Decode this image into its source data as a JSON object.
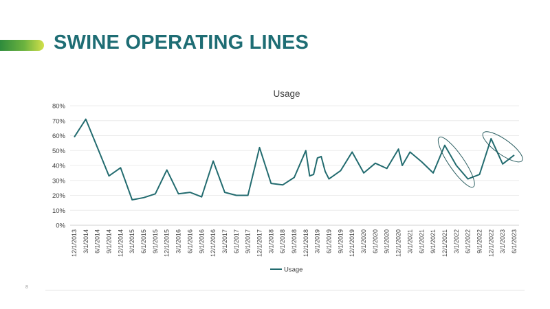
{
  "slide": {
    "title": "SWINE OPERATING LINES",
    "page_number": "8",
    "colors": {
      "title": "#1e6d74",
      "accent_start": "#2e8b3c",
      "accent_end": "#d2e04a"
    }
  },
  "chart_data": {
    "type": "line",
    "title": "Usage",
    "xlabel": "",
    "ylabel": "",
    "ylim": [
      0,
      0.8
    ],
    "yticks": [
      "0%",
      "10%",
      "20%",
      "30%",
      "40%",
      "50%",
      "60%",
      "70%",
      "80%"
    ],
    "grid": true,
    "legend_position": "bottom",
    "line_color": "#226b6f",
    "categories": [
      "12/1/2013",
      "3/1/2014",
      "6/1/2014",
      "9/1/2014",
      "12/1/2014",
      "3/1/2015",
      "6/1/2015",
      "9/1/2015",
      "12/1/2015",
      "3/1/2016",
      "6/1/2016",
      "9/1/2016",
      "12/1/2016",
      "3/1/2017",
      "6/1/2017",
      "9/1/2017",
      "12/1/2017",
      "3/1/2018",
      "6/1/2018",
      "9/1/2018",
      "12/1/2018",
      "3/1/2019",
      "6/1/2019",
      "9/1/2019",
      "12/1/2019",
      "3/1/2020",
      "6/1/2020",
      "9/1/2020",
      "12/1/2020",
      "3/1/2021",
      "6/1/2021",
      "9/1/2021",
      "12/1/2021",
      "3/1/2022",
      "6/1/2022",
      "9/1/2022",
      "12/1/2022",
      "3/1/2023",
      "6/1/2023"
    ],
    "series": [
      {
        "name": "Usage",
        "points": [
          {
            "x": 0,
            "y": 0.59
          },
          {
            "x": 1,
            "y": 0.71
          },
          {
            "x": 2,
            "y": 0.52
          },
          {
            "x": 3,
            "y": 0.33
          },
          {
            "x": 4,
            "y": 0.385
          },
          {
            "x": 5,
            "y": 0.17
          },
          {
            "x": 6,
            "y": 0.185
          },
          {
            "x": 7,
            "y": 0.21
          },
          {
            "x": 8,
            "y": 0.37
          },
          {
            "x": 9,
            "y": 0.21
          },
          {
            "x": 10,
            "y": 0.22
          },
          {
            "x": 11,
            "y": 0.19
          },
          {
            "x": 12,
            "y": 0.43
          },
          {
            "x": 13,
            "y": 0.22
          },
          {
            "x": 14,
            "y": 0.2
          },
          {
            "x": 15,
            "y": 0.2
          },
          {
            "x": 16,
            "y": 0.52
          },
          {
            "x": 17,
            "y": 0.28
          },
          {
            "x": 18,
            "y": 0.27
          },
          {
            "x": 19,
            "y": 0.32
          },
          {
            "x": 20,
            "y": 0.5
          },
          {
            "x": 20.33,
            "y": 0.33
          },
          {
            "x": 20.67,
            "y": 0.34
          },
          {
            "x": 21,
            "y": 0.45
          },
          {
            "x": 21.33,
            "y": 0.46
          },
          {
            "x": 21.67,
            "y": 0.36
          },
          {
            "x": 22,
            "y": 0.31
          },
          {
            "x": 23,
            "y": 0.365
          },
          {
            "x": 24,
            "y": 0.49
          },
          {
            "x": 25,
            "y": 0.35
          },
          {
            "x": 26,
            "y": 0.415
          },
          {
            "x": 27,
            "y": 0.38
          },
          {
            "x": 28,
            "y": 0.51
          },
          {
            "x": 28.33,
            "y": 0.4
          },
          {
            "x": 29,
            "y": 0.49
          },
          {
            "x": 30,
            "y": 0.425
          },
          {
            "x": 31,
            "y": 0.35
          },
          {
            "x": 32,
            "y": 0.535
          },
          {
            "x": 33,
            "y": 0.4
          },
          {
            "x": 34,
            "y": 0.31
          },
          {
            "x": 35,
            "y": 0.34
          },
          {
            "x": 36,
            "y": 0.58
          },
          {
            "x": 37,
            "y": 0.41
          },
          {
            "x": 38,
            "y": 0.47
          }
        ]
      }
    ],
    "annotations": [
      {
        "type": "ellipse-highlight",
        "from": "12/1/2021",
        "to": "6/1/2022"
      },
      {
        "type": "ellipse-highlight",
        "from": "12/1/2022",
        "to": "6/1/2023"
      }
    ]
  }
}
